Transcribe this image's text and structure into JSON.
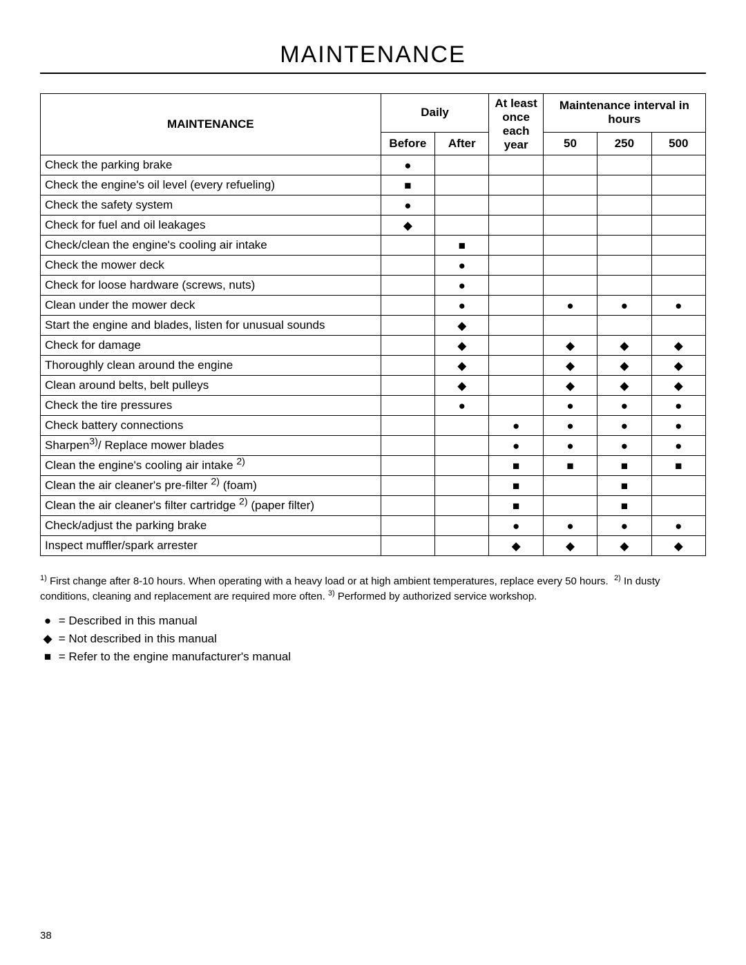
{
  "title": "MAINTENANCE",
  "headers": {
    "task": "MAINTENANCE",
    "daily": "Daily",
    "interval": "Maintenance interval in hours",
    "atLeast": "At least once each year",
    "before": "Before",
    "after": "After",
    "h50": "50",
    "h250": "250",
    "h500": "500"
  },
  "symbols": {
    "circle": "●",
    "diamond": "◆",
    "square": "■"
  },
  "rows": [
    {
      "task": "Check the parking brake",
      "marks": [
        "circle",
        "",
        "",
        "",
        "",
        ""
      ]
    },
    {
      "task": "Check the engine's oil level (every refueling)",
      "marks": [
        "square",
        "",
        "",
        "",
        "",
        ""
      ]
    },
    {
      "task": "Check the safety system",
      "marks": [
        "circle",
        "",
        "",
        "",
        "",
        ""
      ]
    },
    {
      "task": "Check for fuel and oil leakages",
      "marks": [
        "diamond",
        "",
        "",
        "",
        "",
        ""
      ]
    },
    {
      "task": "Check/clean the engine's cooling air intake",
      "marks": [
        "",
        "square",
        "",
        "",
        "",
        ""
      ]
    },
    {
      "task": "Check the mower deck",
      "marks": [
        "",
        "circle",
        "",
        "",
        "",
        ""
      ]
    },
    {
      "task": "Check for loose hardware (screws, nuts)",
      "marks": [
        "",
        "circle",
        "",
        "",
        "",
        ""
      ]
    },
    {
      "task": "Clean under the mower deck",
      "marks": [
        "",
        "circle",
        "",
        "circle",
        "circle",
        "circle"
      ]
    },
    {
      "task": "Start the engine and blades, listen for unusual sounds",
      "marks": [
        "",
        "diamond",
        "",
        "",
        "",
        ""
      ]
    },
    {
      "task": "Check for damage",
      "marks": [
        "",
        "diamond",
        "",
        "diamond",
        "diamond",
        "diamond"
      ]
    },
    {
      "task": "Thoroughly clean around the engine",
      "marks": [
        "",
        "diamond",
        "",
        "diamond",
        "diamond",
        "diamond"
      ]
    },
    {
      "task": "Clean around belts, belt pulleys",
      "marks": [
        "",
        "diamond",
        "",
        "diamond",
        "diamond",
        "diamond"
      ]
    },
    {
      "task": "Check the tire pressures",
      "marks": [
        "",
        "circle",
        "",
        "circle",
        "circle",
        "circle"
      ]
    },
    {
      "task": "Check battery connections",
      "marks": [
        "",
        "",
        "circle",
        "circle",
        "circle",
        "circle"
      ]
    },
    {
      "task": "Sharpen<sup>3)</sup>/ Replace mower blades",
      "marks": [
        "",
        "",
        "circle",
        "circle",
        "circle",
        "circle"
      ]
    },
    {
      "task": "Clean the engine's cooling air intake <sup>2)</sup>",
      "marks": [
        "",
        "",
        "square",
        "square",
        "square",
        "square"
      ]
    },
    {
      "task": "Clean the air cleaner's pre-filter <sup>2)</sup> (foam)",
      "marks": [
        "",
        "",
        "square",
        "",
        "square",
        ""
      ]
    },
    {
      "task": "Clean the air cleaner's filter cartridge <sup>2)</sup> (paper filter)",
      "marks": [
        "",
        "",
        "square",
        "",
        "square",
        ""
      ]
    },
    {
      "task": "Check/adjust the parking brake",
      "marks": [
        "",
        "",
        "circle",
        "circle",
        "circle",
        "circle"
      ]
    },
    {
      "task": "Inspect muffler/spark arrester",
      "marks": [
        "",
        "",
        "diamond",
        "diamond",
        "diamond",
        "diamond"
      ]
    }
  ],
  "footnotes": "<sup>1)</sup> First change after 8-10 hours. When operating with a heavy load or at high ambient temperatures, replace every 50 hours.&nbsp;&nbsp;<sup>2)</sup> In dusty conditions, cleaning and replacement are required more often. <sup>3)</sup> Performed by authorized service workshop.",
  "legend": [
    {
      "sym": "circle",
      "text": "= Described in this manual"
    },
    {
      "sym": "diamond",
      "text": "= Not described in this manual"
    },
    {
      "sym": "square",
      "text": "= Refer to the engine manufacturer's manual"
    }
  ],
  "pageNumber": "38"
}
